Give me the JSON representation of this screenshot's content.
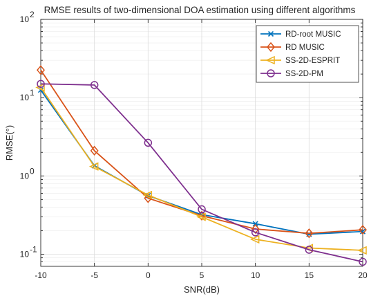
{
  "chart_data": {
    "type": "line",
    "title": "RMSE results of two-dimensional DOA estimation using different algorithms",
    "xlabel": "SNR(dB)",
    "ylabel": "RMSE(°)",
    "x": [
      -10,
      -5,
      0,
      5,
      10,
      15,
      20
    ],
    "xlim": [
      -10,
      20
    ],
    "ylim": [
      0.07,
      100
    ],
    "yscale": "log",
    "xticks": [
      "-10",
      "-5",
      "0",
      "5",
      "10",
      "15",
      "20"
    ],
    "yticks": [
      {
        "value": 0.1,
        "base": "10",
        "exp": "-1"
      },
      {
        "value": 1,
        "base": "10",
        "exp": "0"
      },
      {
        "value": 10,
        "base": "10",
        "exp": "1"
      },
      {
        "value": 100,
        "base": "10",
        "exp": "2"
      }
    ],
    "grid": true,
    "legend_position": "top-right",
    "series": [
      {
        "name": "RD-root MUSIC",
        "marker": "x",
        "color": "#0072BD",
        "values": [
          12.5,
          1.35,
          0.56,
          0.32,
          0.245,
          0.18,
          0.195
        ]
      },
      {
        "name": "RD MUSIC",
        "marker": "diamond",
        "color": "#D95319",
        "values": [
          22.5,
          2.1,
          0.52,
          0.31,
          0.21,
          0.185,
          0.205
        ]
      },
      {
        "name": "SS-2D-ESPRIT",
        "marker": "triangle-left",
        "color": "#EDB120",
        "values": [
          13.5,
          1.32,
          0.57,
          0.3,
          0.155,
          0.12,
          0.112
        ]
      },
      {
        "name": "SS-2D-PM",
        "marker": "circle",
        "color": "#7E2F8E",
        "values": [
          15.0,
          14.5,
          2.65,
          0.375,
          0.19,
          0.114,
          0.08
        ]
      }
    ]
  }
}
